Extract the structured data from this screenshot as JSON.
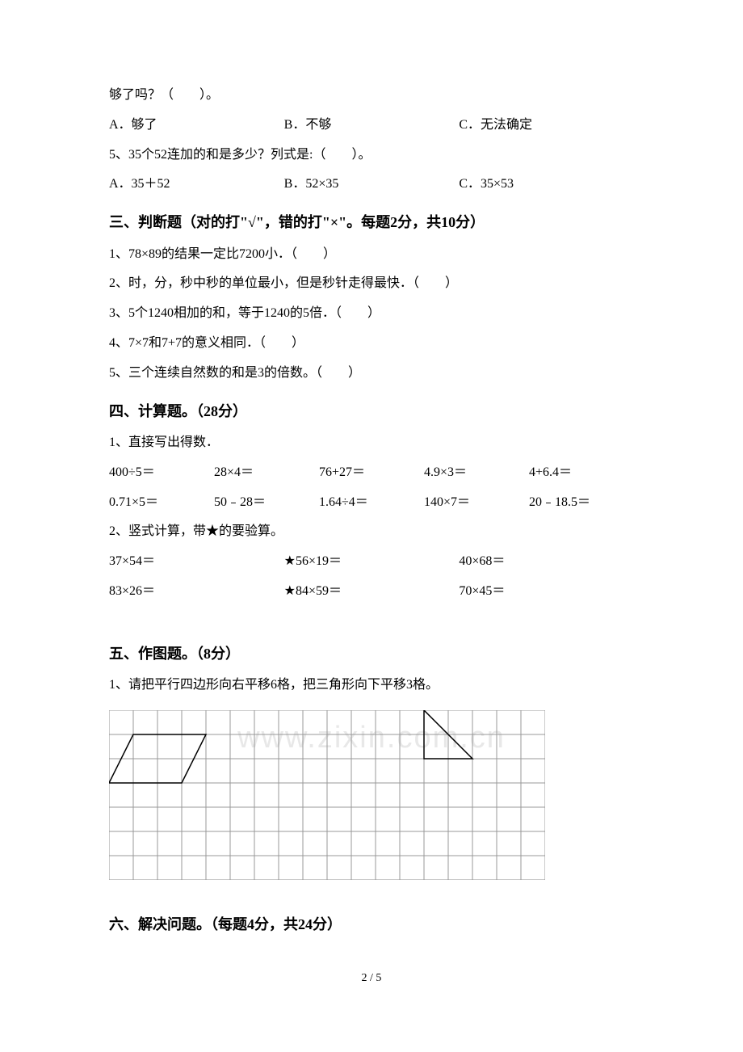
{
  "q4_cont": {
    "line1": "够了吗？（　　）。",
    "optA": "A．够了",
    "optB": "B．不够",
    "optC": "C．无法确定"
  },
  "q5": {
    "line1": "5、35个52连加的和是多少？列式是:（　　）。",
    "optA": "A．35＋52",
    "optB": "B．52×35",
    "optC": "C．35×53"
  },
  "section3": {
    "title": "三、判断题（对的打\"√\"，错的打\"×\"。每题2分，共10分）",
    "q1": "1、78×89的结果一定比7200小．（　　）",
    "q2": "2、时，分，秒中秒的单位最小，但是秒针走得最快．（　　）",
    "q3": "3、5个1240相加的和，等于1240的5倍．（　　）",
    "q4": "4、7×7和7+7的意义相同．（　　）",
    "q5": "5、三个连续自然数的和是3的倍数。（　　）"
  },
  "section4": {
    "title": "四、计算题。（28分）",
    "q1_label": "1、直接写出得数．",
    "row1": {
      "a": "400÷5＝",
      "b": "28×4＝",
      "c": "76+27＝",
      "d": "4.9×3＝",
      "e": "4+6.4＝"
    },
    "row2": {
      "a": "0.71×5＝",
      "b": "50﹣28＝",
      "c": "1.64÷4＝",
      "d": "140×7＝",
      "e": "20﹣18.5＝"
    },
    "q2_label": "2、竖式计算，带★的要验算。",
    "row3": {
      "a": "37×54＝",
      "b": "★56×19＝",
      "c": "40×68＝"
    },
    "row4": {
      "a": "83×26＝",
      "b": "★84×59＝",
      "c": "70×45＝"
    }
  },
  "section5": {
    "title": "五、作图题。（8分）",
    "q1": "1、请把平行四边形向右平移6格，把三角形向下平移3格。"
  },
  "section6": {
    "title": "六、解决问题。（每题4分，共24分）"
  },
  "watermark": "www.zixin.com.cn",
  "page_number": "2 / 5",
  "grid": {
    "cols": 18,
    "rows": 7,
    "cell_size": 30,
    "stroke": "#999999",
    "shape_stroke": "#000000",
    "parallelogram": {
      "p1": [
        1,
        1
      ],
      "p2": [
        4,
        1
      ],
      "p3": [
        3,
        3
      ],
      "p4": [
        0,
        3
      ]
    },
    "triangle": {
      "p1": [
        13,
        0
      ],
      "p2": [
        15,
        2
      ],
      "p3": [
        13,
        2
      ]
    }
  }
}
